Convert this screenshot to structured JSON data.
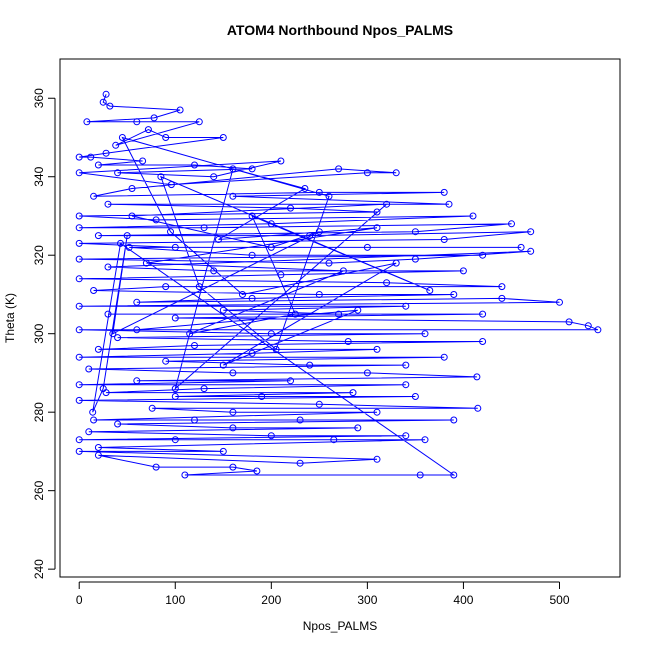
{
  "chart_data": {
    "type": "scatter",
    "title": "ATOM4 Northbound Npos_PALMS",
    "xlabel": "Npos_PALMS",
    "ylabel": "Theta (K)",
    "xlim": [
      -20,
      563
    ],
    "ylim": [
      238,
      370
    ],
    "x_ticks": [
      "0",
      "100",
      "200",
      "300",
      "400",
      "500"
    ],
    "y_ticks": [
      "240",
      "260",
      "280",
      "300",
      "320",
      "340",
      "360"
    ],
    "x_tick_values": [
      0,
      100,
      200,
      300,
      400,
      500
    ],
    "y_tick_values": [
      240,
      260,
      280,
      300,
      320,
      340,
      360
    ],
    "grid": false,
    "series": [
      {
        "color": "#0000ff",
        "marker": "open-circle",
        "connected": true,
        "points": [
          [
            28,
            361
          ],
          [
            25,
            359
          ],
          [
            32,
            358
          ],
          [
            105,
            357
          ],
          [
            78,
            355
          ],
          [
            8,
            354
          ],
          [
            60,
            354
          ],
          [
            125,
            354
          ],
          [
            38,
            348
          ],
          [
            72,
            352
          ],
          [
            90,
            350
          ],
          [
            150,
            350
          ],
          [
            28,
            346
          ],
          [
            0,
            345
          ],
          [
            12,
            345
          ],
          [
            66,
            344
          ],
          [
            20,
            343
          ],
          [
            120,
            343
          ],
          [
            180,
            342
          ],
          [
            40,
            341
          ],
          [
            140,
            340
          ],
          [
            210,
            344
          ],
          [
            0,
            341
          ],
          [
            96,
            338
          ],
          [
            300,
            341
          ],
          [
            330,
            341
          ],
          [
            270,
            342
          ],
          [
            55,
            337
          ],
          [
            15,
            335
          ],
          [
            250,
            336
          ],
          [
            380,
            336
          ],
          [
            160,
            335
          ],
          [
            385,
            333
          ],
          [
            30,
            333
          ],
          [
            220,
            332
          ],
          [
            310,
            331
          ],
          [
            0,
            330
          ],
          [
            80,
            329
          ],
          [
            410,
            330
          ],
          [
            200,
            328
          ],
          [
            0,
            327
          ],
          [
            130,
            327
          ],
          [
            450,
            328
          ],
          [
            350,
            326
          ],
          [
            20,
            325
          ],
          [
            240,
            325
          ],
          [
            470,
            326
          ],
          [
            380,
            324
          ],
          [
            0,
            323
          ],
          [
            100,
            322
          ],
          [
            300,
            322
          ],
          [
            460,
            322
          ],
          [
            52,
            322
          ],
          [
            180,
            320
          ],
          [
            420,
            320
          ],
          [
            0,
            319
          ],
          [
            260,
            318
          ],
          [
            350,
            319
          ],
          [
            470,
            321
          ],
          [
            30,
            317
          ],
          [
            140,
            316
          ],
          [
            400,
            316
          ],
          [
            210,
            315
          ],
          [
            0,
            314
          ],
          [
            320,
            313
          ],
          [
            440,
            312
          ],
          [
            90,
            312
          ],
          [
            15,
            311
          ],
          [
            250,
            310
          ],
          [
            390,
            310
          ],
          [
            180,
            309
          ],
          [
            60,
            308
          ],
          [
            440,
            309
          ],
          [
            500,
            308
          ],
          [
            0,
            307
          ],
          [
            340,
            307
          ],
          [
            150,
            306
          ],
          [
            270,
            305
          ],
          [
            30,
            305
          ],
          [
            420,
            305
          ],
          [
            100,
            304
          ],
          [
            510,
            303
          ],
          [
            530,
            302
          ],
          [
            540,
            301
          ],
          [
            0,
            301
          ],
          [
            200,
            300
          ],
          [
            360,
            300
          ],
          [
            40,
            299
          ],
          [
            280,
            298
          ],
          [
            420,
            298
          ],
          [
            120,
            297
          ],
          [
            20,
            296
          ],
          [
            310,
            296
          ],
          [
            180,
            295
          ],
          [
            0,
            294
          ],
          [
            380,
            294
          ],
          [
            90,
            293
          ],
          [
            240,
            292
          ],
          [
            340,
            292
          ],
          [
            10,
            291
          ],
          [
            160,
            290
          ],
          [
            300,
            290
          ],
          [
            414,
            289
          ],
          [
            60,
            288
          ],
          [
            220,
            288
          ],
          [
            0,
            287
          ],
          [
            340,
            287
          ],
          [
            130,
            286
          ],
          [
            28,
            285
          ],
          [
            285,
            285
          ],
          [
            100,
            284
          ],
          [
            190,
            284
          ],
          [
            350,
            284
          ],
          [
            0,
            283
          ],
          [
            250,
            282
          ],
          [
            415,
            281
          ],
          [
            76,
            281
          ],
          [
            160,
            280
          ],
          [
            310,
            280
          ],
          [
            15,
            278
          ],
          [
            120,
            278
          ],
          [
            230,
            278
          ],
          [
            390,
            278
          ],
          [
            40,
            277
          ],
          [
            160,
            276
          ],
          [
            290,
            276
          ],
          [
            10,
            275
          ],
          [
            200,
            274
          ],
          [
            340,
            274
          ],
          [
            0,
            273
          ],
          [
            100,
            273
          ],
          [
            265,
            273
          ],
          [
            360,
            273
          ],
          [
            20,
            271
          ],
          [
            150,
            270
          ],
          [
            0,
            270
          ],
          [
            310,
            268
          ],
          [
            230,
            267
          ],
          [
            20,
            269
          ],
          [
            80,
            266
          ],
          [
            160,
            266
          ],
          [
            185,
            265
          ],
          [
            110,
            264
          ],
          [
            355,
            264
          ],
          [
            390,
            264
          ],
          [
            43,
            323
          ],
          [
            14,
            280
          ],
          [
            25,
            286
          ],
          [
            50,
            325
          ],
          [
            35,
            300
          ],
          [
            250,
            326
          ],
          [
            200,
            322
          ],
          [
            55,
            330
          ],
          [
            320,
            333
          ],
          [
            100,
            286
          ],
          [
            160,
            342
          ],
          [
            235,
            337
          ],
          [
            145,
            324
          ],
          [
            310,
            327
          ],
          [
            70,
            318
          ],
          [
            275,
            316
          ],
          [
            115,
            300
          ],
          [
            225,
            305
          ],
          [
            180,
            330
          ],
          [
            365,
            311
          ],
          [
            85,
            340
          ],
          [
            125,
            312
          ],
          [
            205,
            296
          ],
          [
            260,
            335
          ],
          [
            45,
            350
          ],
          [
            95,
            326
          ],
          [
            170,
            310
          ],
          [
            330,
            318
          ],
          [
            150,
            292
          ],
          [
            290,
            306
          ],
          [
            60,
            301
          ]
        ]
      }
    ]
  }
}
